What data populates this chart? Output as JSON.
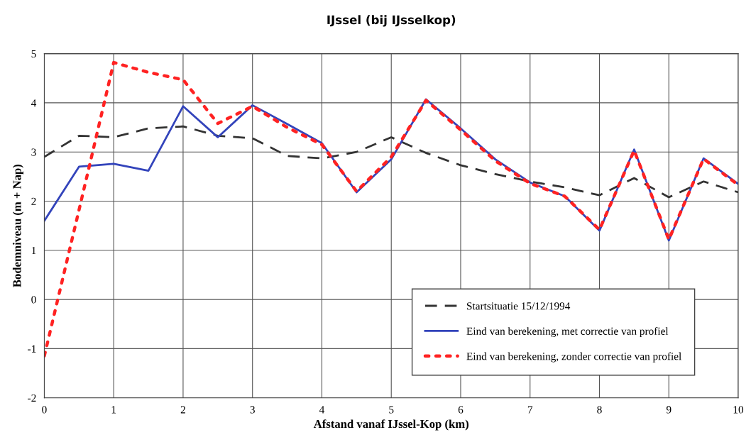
{
  "chart_data": {
    "type": "line",
    "title": "IJssel (bij IJsselkop)",
    "xlabel": "Afstand vanaf IJssel-Kop (km)",
    "ylabel": "Bodemniveau (m + Nap)",
    "x": [
      0,
      0.5,
      1,
      1.5,
      2,
      2.5,
      3,
      3.5,
      4,
      4.5,
      5,
      5.5,
      6,
      6.5,
      7,
      7.5,
      8,
      8.5,
      9,
      9.5,
      10
    ],
    "series": [
      {
        "name": "Startsituatie 15/12/1994",
        "color": "#333333",
        "line_style": "dashed",
        "values": [
          2.9,
          3.33,
          3.3,
          3.48,
          3.52,
          3.33,
          3.28,
          2.92,
          2.87,
          3.0,
          3.3,
          2.98,
          2.73,
          2.55,
          2.4,
          2.28,
          2.12,
          2.47,
          2.08,
          2.4,
          2.18
        ]
      },
      {
        "name": "Eind van berekening, met correctie van profiel",
        "color": "#3344bb",
        "line_style": "solid",
        "values": [
          1.6,
          2.7,
          2.76,
          2.62,
          3.93,
          3.3,
          3.95,
          3.57,
          3.18,
          2.18,
          2.85,
          4.07,
          3.48,
          2.85,
          2.38,
          2.1,
          1.4,
          3.05,
          1.2,
          2.87,
          2.35
        ]
      },
      {
        "name": "Eind van berekening, zonder correctie van profiel",
        "color": "#ff2222",
        "line_style": "dotted",
        "values": [
          -1.15,
          1.82,
          4.82,
          4.62,
          4.47,
          3.58,
          3.93,
          3.5,
          3.15,
          2.2,
          2.9,
          4.05,
          3.45,
          2.82,
          2.36,
          2.1,
          1.42,
          3.03,
          1.22,
          2.86,
          2.33
        ]
      }
    ],
    "xlim": [
      0,
      10
    ],
    "xticks": [
      0,
      1,
      2,
      3,
      4,
      5,
      6,
      7,
      8,
      9,
      10
    ],
    "ylim": [
      -2,
      5
    ],
    "yticks": [
      -2,
      -1,
      0,
      1,
      2,
      3,
      4,
      5
    ],
    "grid": true,
    "legend": "bottom right",
    "marker": "none"
  }
}
